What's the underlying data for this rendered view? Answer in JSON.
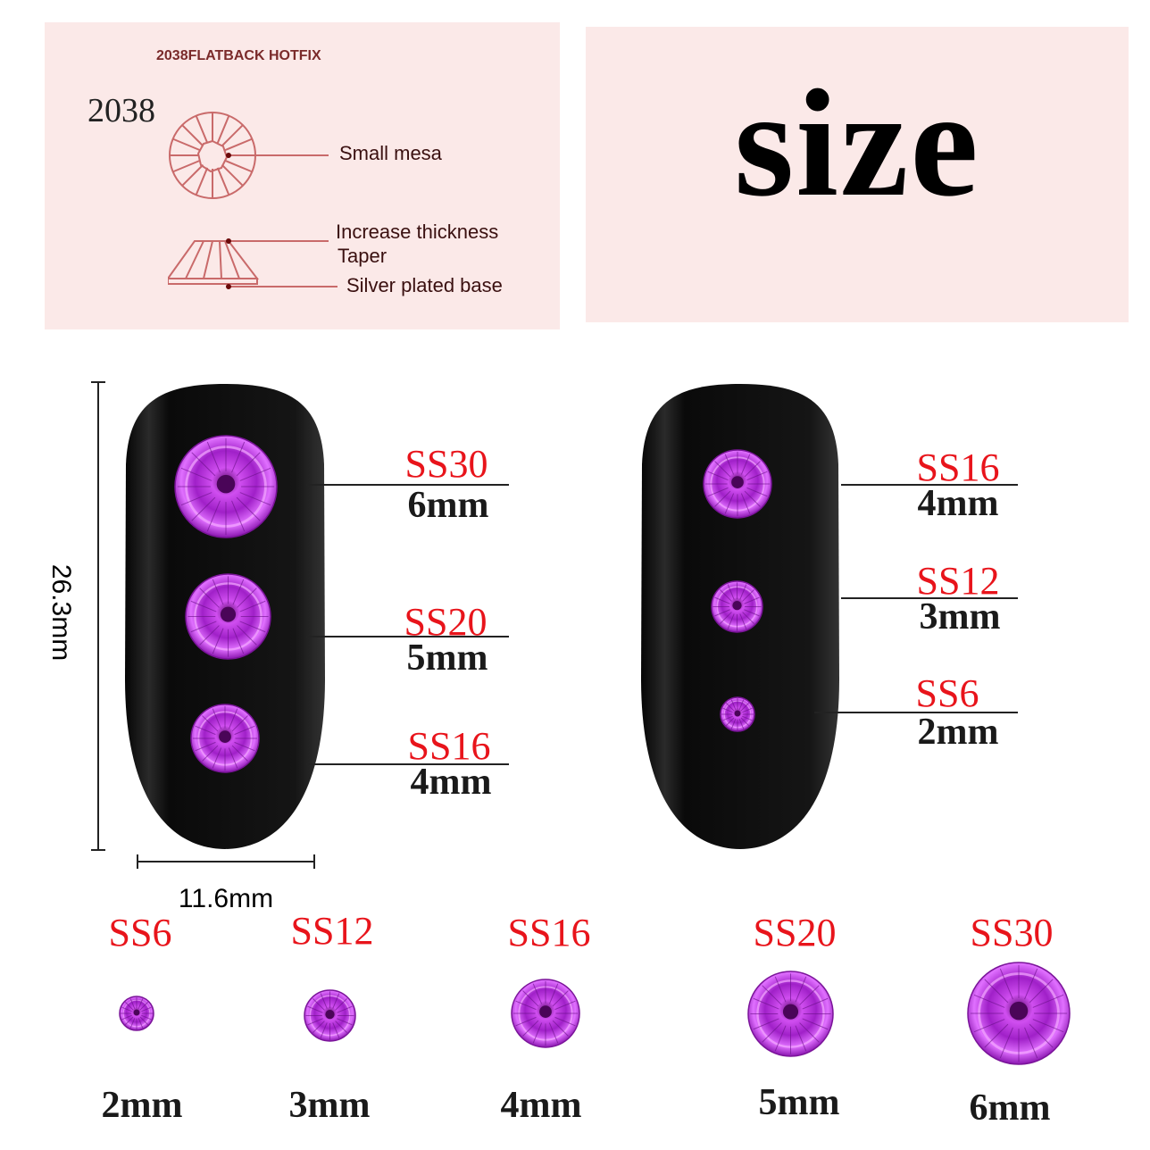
{
  "diagram": {
    "header": "2038FLATBACK HOTFIX",
    "model": "2038",
    "labels": {
      "top": "Small mesa",
      "thickness": "Increase thickness",
      "taper": "Taper",
      "base": "Silver plated base"
    },
    "line_color": "#c96a6a",
    "panel_color": "#fbe9e8"
  },
  "title": "size",
  "nail_dimensions": {
    "height": "26.3mm",
    "width": "11.6mm"
  },
  "left_nail": [
    {
      "ss": "SS30",
      "mm": "6mm",
      "diameter_mm": 6
    },
    {
      "ss": "SS20",
      "mm": "5mm",
      "diameter_mm": 5
    },
    {
      "ss": "SS16",
      "mm": "4mm",
      "diameter_mm": 4
    }
  ],
  "right_nail": [
    {
      "ss": "SS16",
      "mm": "4mm",
      "diameter_mm": 4
    },
    {
      "ss": "SS12",
      "mm": "3mm",
      "diameter_mm": 3
    },
    {
      "ss": "SS6",
      "mm": "2mm",
      "diameter_mm": 2
    }
  ],
  "bottom_row": [
    {
      "ss": "SS6",
      "mm": "2mm",
      "diameter_mm": 2
    },
    {
      "ss": "SS12",
      "mm": "3mm",
      "diameter_mm": 3
    },
    {
      "ss": "SS16",
      "mm": "4mm",
      "diameter_mm": 4
    },
    {
      "ss": "SS20",
      "mm": "5mm",
      "diameter_mm": 5
    },
    {
      "ss": "SS30",
      "mm": "6mm",
      "diameter_mm": 6
    }
  ],
  "colors": {
    "ss_label": "#e8141b",
    "gem": "#b12fd6",
    "nail": "#111111"
  }
}
